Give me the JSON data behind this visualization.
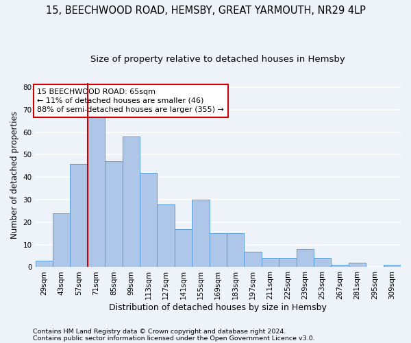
{
  "title1": "15, BEECHWOOD ROAD, HEMSBY, GREAT YARMOUTH, NR29 4LP",
  "title2": "Size of property relative to detached houses in Hemsby",
  "xlabel": "Distribution of detached houses by size in Hemsby",
  "ylabel": "Number of detached properties",
  "categories": [
    "29sqm",
    "43sqm",
    "57sqm",
    "71sqm",
    "85sqm",
    "99sqm",
    "113sqm",
    "127sqm",
    "141sqm",
    "155sqm",
    "169sqm",
    "183sqm",
    "197sqm",
    "211sqm",
    "225sqm",
    "239sqm",
    "253sqm",
    "267sqm",
    "281sqm",
    "295sqm",
    "309sqm"
  ],
  "values": [
    3,
    24,
    46,
    68,
    47,
    58,
    42,
    28,
    17,
    30,
    15,
    15,
    7,
    4,
    4,
    8,
    4,
    1,
    2,
    0,
    1
  ],
  "bar_color": "#aec6e8",
  "bar_edge_color": "#5b9bd5",
  "vline_color": "#cc0000",
  "vline_x": 2.5,
  "annotation_text": "15 BEECHWOOD ROAD: 65sqm\n← 11% of detached houses are smaller (46)\n88% of semi-detached houses are larger (355) →",
  "annotation_box_color": "#ffffff",
  "annotation_box_edge": "#cc0000",
  "ylim": [
    0,
    82
  ],
  "yticks": [
    0,
    10,
    20,
    30,
    40,
    50,
    60,
    70,
    80
  ],
  "footnote1": "Contains HM Land Registry data © Crown copyright and database right 2024.",
  "footnote2": "Contains public sector information licensed under the Open Government Licence v3.0.",
  "bg_color": "#eef2f9",
  "plot_bg_color": "#eef2f9",
  "grid_color": "#ffffff",
  "title1_fontsize": 10.5,
  "title2_fontsize": 9.5,
  "xlabel_fontsize": 9,
  "ylabel_fontsize": 8.5,
  "tick_fontsize": 7.5,
  "annotation_fontsize": 8,
  "footnote_fontsize": 6.8
}
